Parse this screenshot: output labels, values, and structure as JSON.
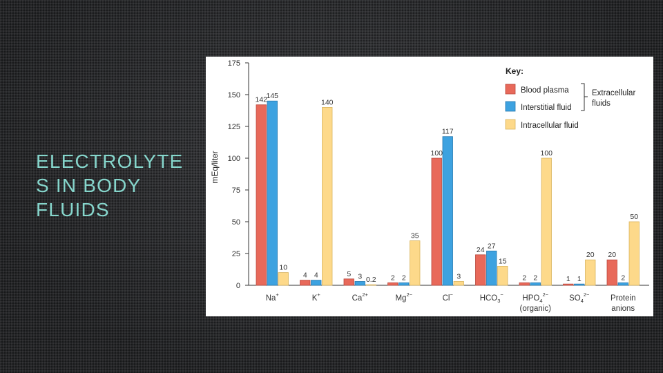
{
  "slide": {
    "title_line1": "ELECTROLYTE",
    "title_line2": "S IN BODY",
    "title_line3": "FLUIDS"
  },
  "colors": {
    "plasma": "#e8695a",
    "interstitial": "#3da2e0",
    "intracellular": "#fdd98a",
    "plasma_stroke": "#b9473b",
    "interstitial_stroke": "#2578b0",
    "intracellular_stroke": "#d9b45e"
  },
  "chart_data": {
    "type": "bar",
    "ylabel": "mEq/liter",
    "ylim": [
      0,
      175
    ],
    "yticks": [
      0,
      25,
      50,
      75,
      100,
      125,
      150,
      175
    ],
    "grid": false,
    "legend_position": "top-right",
    "key": {
      "title": "Key:",
      "group_label_line1": "Extracellular",
      "group_label_line2": "fluids"
    },
    "categories": [
      {
        "base": "Na",
        "sup": "+",
        "sub": "",
        "line2": ""
      },
      {
        "base": "K",
        "sup": "+",
        "sub": "",
        "line2": ""
      },
      {
        "base": "Ca",
        "sup": "2+",
        "sub": "",
        "line2": ""
      },
      {
        "base": "Mg",
        "sup": "2−",
        "sub": "",
        "line2": ""
      },
      {
        "base": "Cl",
        "sup": "−",
        "sub": "",
        "line2": ""
      },
      {
        "base": "HCO",
        "sup": "−",
        "sub": "3",
        "line2": ""
      },
      {
        "base": "HPO",
        "sup": "2−",
        "sub": "4",
        "line2": "(organic)"
      },
      {
        "base": "SO",
        "sup": "2−",
        "sub": "4",
        "line2": ""
      },
      {
        "base": "Protein",
        "sup": "",
        "sub": "",
        "line2": "anions"
      }
    ],
    "series": [
      {
        "name": "Blood plasma",
        "values": [
          142,
          4,
          5,
          2,
          100,
          24,
          2,
          1,
          20
        ],
        "labels": [
          "142",
          "4",
          "5",
          "2",
          "100",
          "24",
          "2",
          "1",
          "20"
        ]
      },
      {
        "name": "Interstitial fluid",
        "values": [
          145,
          4,
          3,
          2,
          117,
          27,
          2,
          1,
          2
        ],
        "labels": [
          "145",
          "4",
          "3",
          "2",
          "117",
          "27",
          "2",
          "1",
          "2"
        ]
      },
      {
        "name": "Intracellular fluid",
        "values": [
          10,
          140,
          0.2,
          35,
          3,
          15,
          100,
          20,
          50
        ],
        "labels": [
          "10",
          "140",
          "0.2",
          "35",
          "3",
          "15",
          "100",
          "20",
          "50"
        ]
      }
    ]
  }
}
